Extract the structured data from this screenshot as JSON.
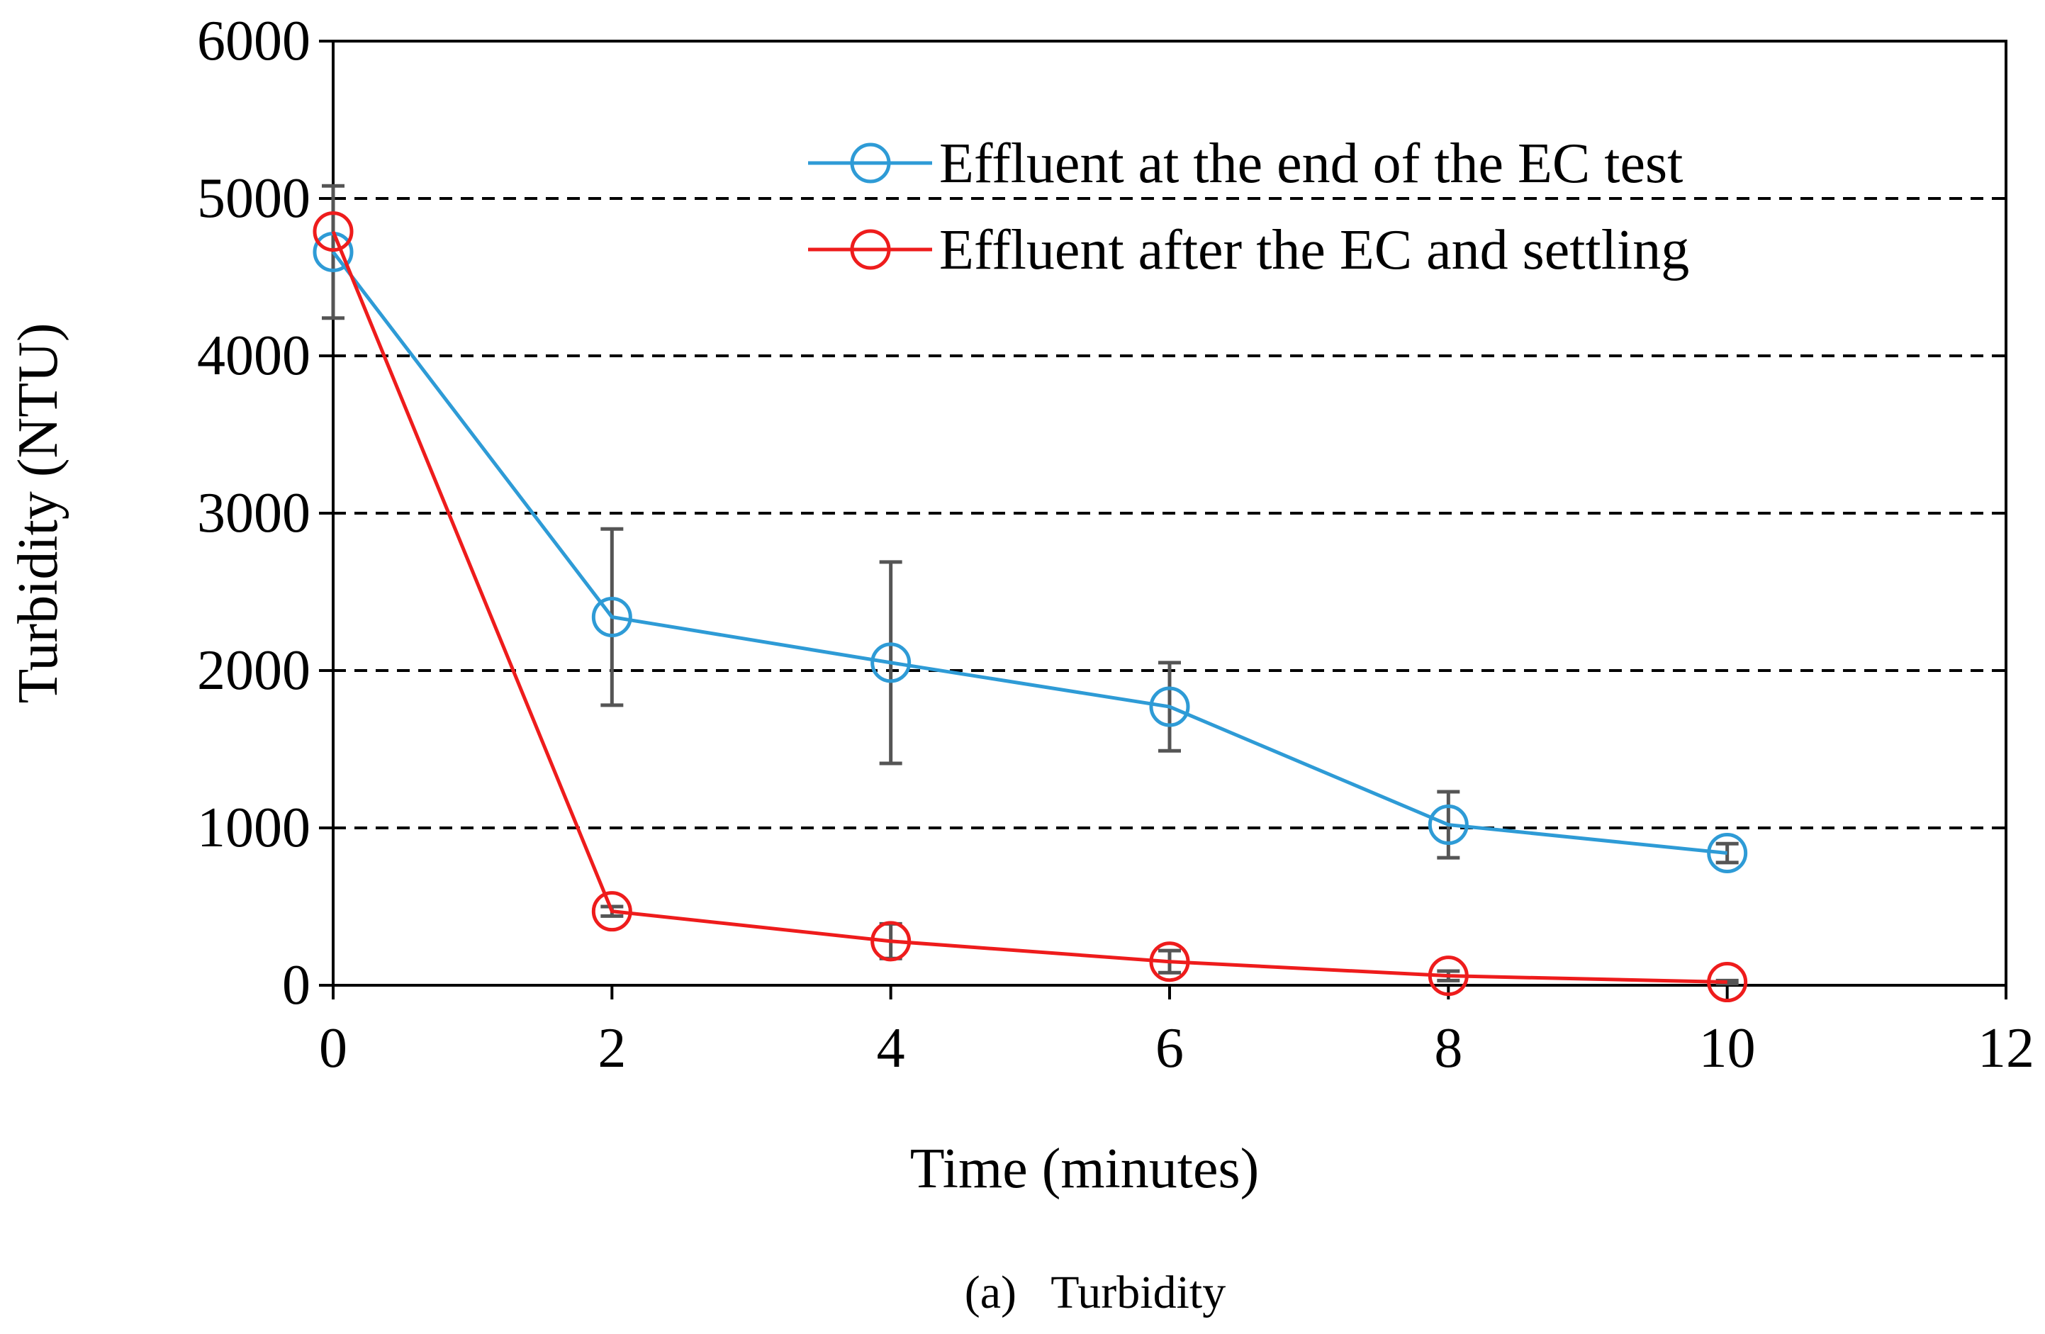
{
  "chart_data": {
    "type": "line",
    "title": "",
    "caption": "(a)   Turbidity",
    "xlabel": "Time (minutes)",
    "ylabel": "Turbidity (NTU)",
    "xlim": [
      0,
      12
    ],
    "ylim": [
      0,
      6000
    ],
    "xticks": [
      0,
      2,
      4,
      6,
      8,
      10,
      12
    ],
    "yticks": [
      0,
      1000,
      2000,
      3000,
      4000,
      5000,
      6000
    ],
    "xtick_labels": [
      "0",
      "2",
      "4",
      "6",
      "8",
      "10",
      "12"
    ],
    "ytick_labels": [
      "0",
      "1000",
      "2000",
      "3000",
      "4000",
      "5000",
      "6000"
    ],
    "grid": "horizontal dashed",
    "legend_position": "top-right",
    "series": [
      {
        "name": "Effluent at the end of the EC test",
        "color": "#2e9bd6",
        "x": [
          0,
          2,
          4,
          6,
          8,
          10
        ],
        "y": [
          4660,
          2340,
          2050,
          1770,
          1020,
          840
        ],
        "err": [
          420,
          560,
          640,
          280,
          210,
          60
        ]
      },
      {
        "name": "Effluent after the EC and settling",
        "color": "#ee1c1c",
        "x": [
          0,
          2,
          4,
          6,
          8,
          10
        ],
        "y": [
          4790,
          470,
          280,
          150,
          60,
          20
        ],
        "err": [
          0,
          30,
          110,
          70,
          30,
          10
        ]
      }
    ],
    "errorbar_color": "#555555"
  }
}
